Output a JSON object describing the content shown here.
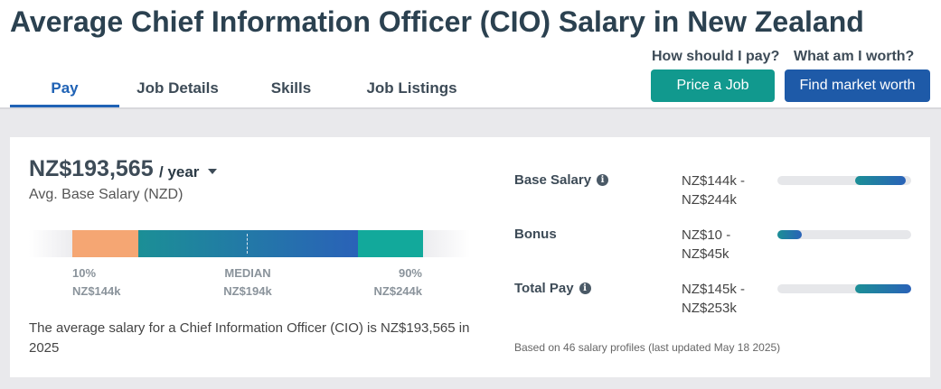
{
  "page": {
    "title": "Average Chief Information Officer (CIO) Salary in New Zealand"
  },
  "tabs": [
    {
      "label": "Pay",
      "active": true
    },
    {
      "label": "Job Details",
      "active": false
    },
    {
      "label": "Skills",
      "active": false
    },
    {
      "label": "Job Listings",
      "active": false
    }
  ],
  "cta": {
    "price_prompt": "How should I pay?",
    "price_button": "Price a Job",
    "worth_prompt": "What am I worth?",
    "worth_button": "Find market worth"
  },
  "salary": {
    "avg_value": "NZ$193,565",
    "period": "/ year",
    "avg_label": "Avg. Base Salary (NZD)",
    "percentiles": {
      "p10_label": "10%",
      "p10_value": "NZ$144k",
      "median_label": "MEDIAN",
      "median_value": "NZ$194k",
      "p90_label": "90%",
      "p90_value": "NZ$244k"
    },
    "summary": "The average salary for a Chief Information Officer (CIO) is NZ$193,565 in 2025"
  },
  "ranges": [
    {
      "label": "Base Salary",
      "info": true,
      "range_line1": "NZ$144k -",
      "range_line2": "NZ$244k",
      "fill_start": 0.58,
      "fill_end": 0.96
    },
    {
      "label": "Bonus",
      "info": false,
      "range_line1": "NZ$10 -",
      "range_line2": "NZ$45k",
      "fill_start": 0.0,
      "fill_end": 0.18
    },
    {
      "label": "Total Pay",
      "info": true,
      "range_line1": "NZ$145k -",
      "range_line2": "NZ$253k",
      "fill_start": 0.58,
      "fill_end": 1.0
    }
  ],
  "footnote": "Based on 46 salary profiles (last updated May 18 2025)",
  "colors": {
    "accent_blue": "#1f62b5",
    "teal_button": "#11998e",
    "blue_button": "#1e5aa8",
    "p10_segment": "#f5a673",
    "p90_segment": "#12a99b"
  }
}
